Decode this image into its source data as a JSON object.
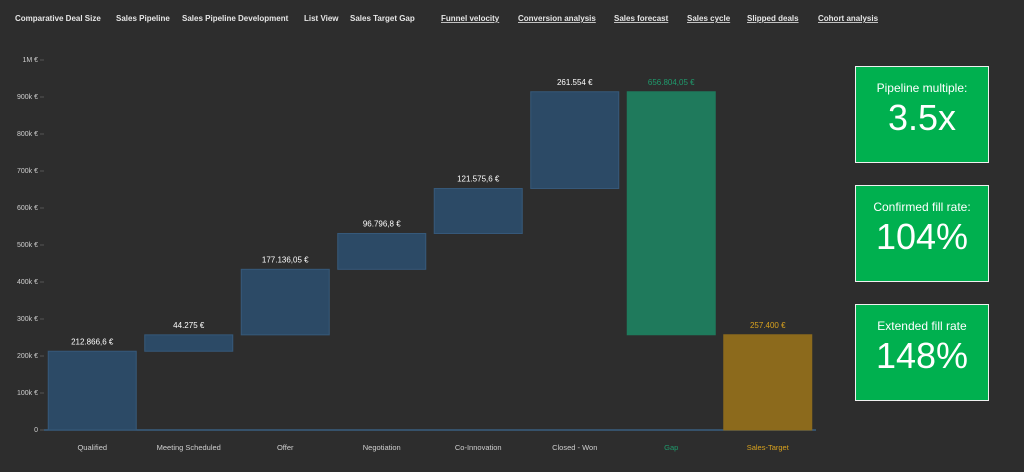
{
  "tabs": [
    "Comparative Deal Size",
    "Sales Pipeline",
    "Sales Pipeline Development",
    "List View",
    "Sales Target Gap",
    "Funnel velocity",
    "Conversion analysis",
    "Sales forecast",
    "Sales cycle",
    "Slipped deals",
    "Cohort analysis"
  ],
  "active_tab": 4,
  "chart_data": {
    "type": "waterfall",
    "categories": [
      "Qualified",
      "Meeting Scheduled",
      "Offer",
      "Negotiation",
      "Co-Innovation",
      "Closed - Won",
      "Gap",
      "Sales-Target"
    ],
    "values": [
      212866.6,
      44275,
      177136.05,
      96796.8,
      121575.6,
      261554,
      656804.05,
      257400
    ],
    "value_labels": [
      "212.866,6 €",
      "44.275 €",
      "177.136,05 €",
      "96.796,8 €",
      "121.575,6 €",
      "261.554 €",
      "656.804,05 €",
      "257.400 €"
    ],
    "measures": [
      "relative",
      "relative",
      "relative",
      "relative",
      "relative",
      "relative",
      "decrease",
      "total"
    ],
    "colors": [
      "#2c4a66",
      "#2c4a66",
      "#2c4a66",
      "#2c4a66",
      "#2c4a66",
      "#2c4a66",
      "#1f7a5c",
      "#8c6a1c"
    ],
    "label_colors": [
      "#ffffff",
      "#ffffff",
      "#ffffff",
      "#ffffff",
      "#ffffff",
      "#ffffff",
      "#1f9a6c",
      "#d9a21e"
    ],
    "ylim": [
      0,
      1000000
    ],
    "yticks": [
      0,
      {
        "value": 100000,
        "label": "100k €"
      },
      {
        "value": 200000,
        "label": "200k €"
      },
      {
        "value": 300000,
        "label": "300k €"
      },
      {
        "value": 400000,
        "label": "400k €"
      },
      {
        "value": 500000,
        "label": "500k €"
      },
      {
        "value": 600000,
        "label": "600k €"
      },
      {
        "value": 700000,
        "label": "700k €"
      },
      {
        "value": 800000,
        "label": "800k €"
      },
      {
        "value": 900000,
        "label": "900k €"
      },
      {
        "value": 1000000,
        "label": "1M €"
      }
    ]
  },
  "kpis": [
    {
      "title": "Pipeline multiple:",
      "value": "3.5x"
    },
    {
      "title": "Confirmed fill rate:",
      "value": "104%"
    },
    {
      "title": "Extended fill rate",
      "value": "148%"
    }
  ]
}
